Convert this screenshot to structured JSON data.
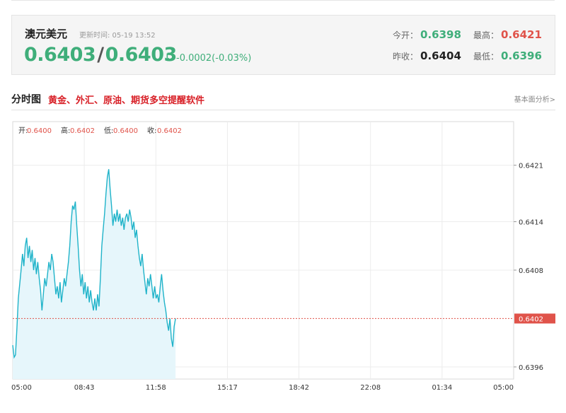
{
  "quote": {
    "name": "澳元美元",
    "time_label": "更新时间: 05-19 13:52",
    "bid": "0.6403",
    "ask": "0.6403",
    "slash": "/",
    "arrow": "↓",
    "change": "-0.0002(-0.03%)",
    "open_label": "今开：",
    "open": "0.6398",
    "high_label": "最高：",
    "high": "0.6421",
    "prev_label": "昨收：",
    "prev": "0.6404",
    "low_label": "最低：",
    "low": "0.6396",
    "colors": {
      "up": "#e0534a",
      "down": "#3fae7a"
    }
  },
  "section": {
    "title": "分时图",
    "ad": "黄金、外汇、原油、期货多空提醒软件",
    "link": "基本面分析>"
  },
  "ohlc": {
    "open_label": "开:",
    "open": "0.6400",
    "high_label": "高:",
    "high": "0.6402",
    "low_label": "低:",
    "low": "0.6400",
    "close_label": "收:",
    "close": "0.6402"
  },
  "chart_data": {
    "type": "area",
    "x_ticks": [
      "05:00",
      "08:43",
      "11:58",
      "15:17",
      "18:42",
      "22:08",
      "01:34",
      "05:00"
    ],
    "y_ticks": [
      "0.6421",
      "0.6414",
      "0.6408",
      "0.6396"
    ],
    "current_price_label": "0.6402",
    "ylim": [
      0.63945,
      0.64264
    ],
    "x_range_minutes": [
      0,
      1440
    ],
    "grid": true,
    "colors": {
      "line": "#1fb3c9",
      "fill": "#e6f6fb",
      "ref": "#e0534a"
    },
    "points": [
      [
        0,
        0.63987
      ],
      [
        4,
        0.63972
      ],
      [
        8,
        0.63975
      ],
      [
        12,
        0.64008
      ],
      [
        16,
        0.64045
      ],
      [
        20,
        0.64062
      ],
      [
        24,
        0.6408
      ],
      [
        28,
        0.641
      ],
      [
        32,
        0.64085
      ],
      [
        36,
        0.6411
      ],
      [
        40,
        0.6412
      ],
      [
        44,
        0.64095
      ],
      [
        48,
        0.6411
      ],
      [
        52,
        0.6409
      ],
      [
        56,
        0.64105
      ],
      [
        60,
        0.6408
      ],
      [
        64,
        0.64095
      ],
      [
        68,
        0.64075
      ],
      [
        72,
        0.6409
      ],
      [
        76,
        0.6407
      ],
      [
        80,
        0.64055
      ],
      [
        84,
        0.6403
      ],
      [
        88,
        0.6405
      ],
      [
        92,
        0.6407
      ],
      [
        96,
        0.6406
      ],
      [
        100,
        0.64075
      ],
      [
        104,
        0.6409
      ],
      [
        108,
        0.6408
      ],
      [
        112,
        0.641
      ],
      [
        116,
        0.6409
      ],
      [
        120,
        0.6407
      ],
      [
        124,
        0.6405
      ],
      [
        128,
        0.6406
      ],
      [
        132,
        0.64045
      ],
      [
        136,
        0.64065
      ],
      [
        140,
        0.6404
      ],
      [
        144,
        0.64055
      ],
      [
        148,
        0.6407
      ],
      [
        152,
        0.6406
      ],
      [
        156,
        0.64075
      ],
      [
        160,
        0.6409
      ],
      [
        164,
        0.6411
      ],
      [
        168,
        0.6414
      ],
      [
        172,
        0.6416
      ],
      [
        176,
        0.64155
      ],
      [
        180,
        0.64165
      ],
      [
        184,
        0.64135
      ],
      [
        188,
        0.6411
      ],
      [
        192,
        0.6408
      ],
      [
        196,
        0.6406
      ],
      [
        200,
        0.64075
      ],
      [
        204,
        0.6405
      ],
      [
        208,
        0.64065
      ],
      [
        212,
        0.64045
      ],
      [
        216,
        0.6406
      ],
      [
        220,
        0.6404
      ],
      [
        224,
        0.64055
      ],
      [
        228,
        0.6404
      ],
      [
        232,
        0.6403
      ],
      [
        236,
        0.64045
      ],
      [
        240,
        0.6403
      ],
      [
        244,
        0.6405
      ],
      [
        248,
        0.64035
      ],
      [
        252,
        0.6407
      ],
      [
        256,
        0.6411
      ],
      [
        260,
        0.6413
      ],
      [
        264,
        0.6415
      ],
      [
        268,
        0.64175
      ],
      [
        272,
        0.64195
      ],
      [
        276,
        0.64205
      ],
      [
        280,
        0.6418
      ],
      [
        284,
        0.6416
      ],
      [
        288,
        0.64135
      ],
      [
        292,
        0.6415
      ],
      [
        296,
        0.6414
      ],
      [
        300,
        0.64155
      ],
      [
        304,
        0.6414
      ],
      [
        308,
        0.6415
      ],
      [
        312,
        0.64135
      ],
      [
        316,
        0.64145
      ],
      [
        320,
        0.6413
      ],
      [
        324,
        0.64145
      ],
      [
        328,
        0.6415
      ],
      [
        332,
        0.6414
      ],
      [
        336,
        0.64155
      ],
      [
        340,
        0.64145
      ],
      [
        344,
        0.6413
      ],
      [
        348,
        0.6414
      ],
      [
        352,
        0.6412
      ],
      [
        356,
        0.6413
      ],
      [
        360,
        0.6411
      ],
      [
        364,
        0.64095
      ],
      [
        368,
        0.64085
      ],
      [
        372,
        0.641
      ],
      [
        376,
        0.6408
      ],
      [
        380,
        0.64065
      ],
      [
        384,
        0.6405
      ],
      [
        388,
        0.6407
      ],
      [
        392,
        0.6406
      ],
      [
        396,
        0.64075
      ],
      [
        400,
        0.6406
      ],
      [
        404,
        0.64045
      ],
      [
        408,
        0.6406
      ],
      [
        412,
        0.64045
      ],
      [
        416,
        0.6405
      ],
      [
        420,
        0.6404
      ],
      [
        424,
        0.6406
      ],
      [
        428,
        0.64075
      ],
      [
        432,
        0.64055
      ],
      [
        436,
        0.6404
      ],
      [
        440,
        0.6403
      ],
      [
        444,
        0.64015
      ],
      [
        448,
        0.64005
      ],
      [
        452,
        0.6402
      ],
      [
        456,
        0.63995
      ],
      [
        460,
        0.63985
      ],
      [
        464,
        0.6401
      ],
      [
        468,
        0.6402
      ]
    ]
  }
}
